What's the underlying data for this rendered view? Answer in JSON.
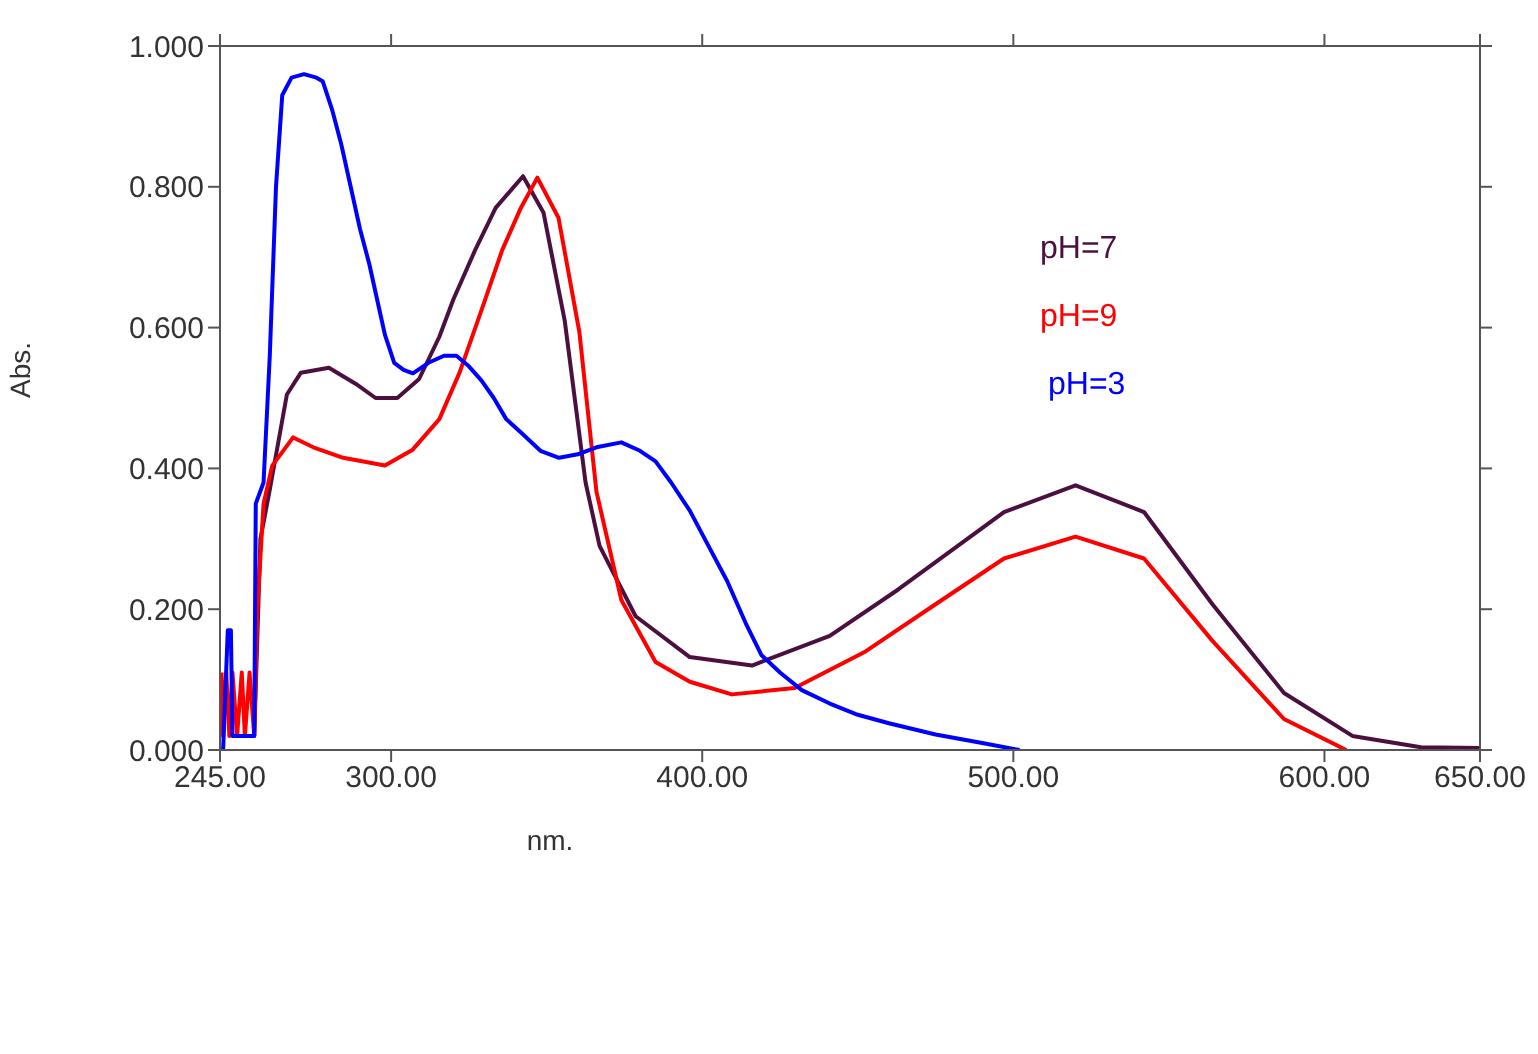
{
  "chart_data": {
    "type": "line",
    "xlabel": "nm.",
    "ylabel": "Abs.",
    "xlim": [
      245,
      650
    ],
    "ylim": [
      0,
      1
    ],
    "xticks": [
      {
        "value": 245,
        "label": "245.00"
      },
      {
        "value": 300,
        "label": "300.00"
      },
      {
        "value": 400,
        "label": "400.00"
      },
      {
        "value": 500,
        "label": "500.00"
      },
      {
        "value": 600,
        "label": "600.00"
      },
      {
        "value": 650,
        "label": "650.00"
      }
    ],
    "yticks": [
      {
        "value": 0,
        "label": "0.000"
      },
      {
        "value": 0.2,
        "label": "0.200"
      },
      {
        "value": 0.4,
        "label": "0.400"
      },
      {
        "value": 0.6,
        "label": "0.600"
      },
      {
        "value": 0.8,
        "label": "0.800"
      },
      {
        "value": 1,
        "label": "1.000"
      }
    ],
    "grid": false,
    "legend": "top right",
    "series": [
      {
        "name": "pH=7",
        "color": "#4b0f40",
        "x": [
          256,
          258,
          261,
          266.5,
          271,
          280,
          288.7,
          295,
          302,
          309,
          315.5,
          320,
          327,
          333.6,
          342.4,
          349,
          355.8,
          362.5,
          367,
          378.6,
          396,
          416,
          441,
          463,
          497,
          520,
          542,
          564,
          587,
          609,
          631,
          650
        ],
        "values": [
          0.02,
          0.3,
          0.37,
          0.505,
          0.536,
          0.543,
          0.52,
          0.5,
          0.5,
          0.527,
          0.587,
          0.64,
          0.71,
          0.77,
          0.815,
          0.763,
          0.61,
          0.38,
          0.29,
          0.19,
          0.132,
          0.12,
          0.162,
          0.228,
          0.338,
          0.376,
          0.338,
          0.207,
          0.081,
          0.02,
          0.004,
          0.003
        ]
      },
      {
        "name": "pH=9",
        "color": "#ff0000",
        "x": [
          245.5,
          246,
          247,
          248,
          249,
          250.5,
          252,
          253,
          254.5,
          256,
          257,
          259,
          261.8,
          268.5,
          275,
          284.6,
          298,
          306.8,
          315.5,
          322,
          329,
          335.7,
          341.7,
          347,
          353.8,
          360.5,
          366,
          374,
          385,
          396,
          409.5,
          429.7,
          452.5,
          475,
          497,
          520,
          542,
          564,
          587,
          607
        ],
        "values": [
          0.11,
          0.02,
          0.11,
          0.02,
          0.11,
          0.02,
          0.11,
          0.02,
          0.11,
          0.02,
          0.2,
          0.35,
          0.404,
          0.444,
          0.43,
          0.415,
          0.404,
          0.426,
          0.47,
          0.536,
          0.624,
          0.71,
          0.77,
          0.813,
          0.756,
          0.594,
          0.367,
          0.213,
          0.125,
          0.097,
          0.079,
          0.088,
          0.14,
          0.207,
          0.272,
          0.303,
          0.272,
          0.155,
          0.044,
          0
        ]
      },
      {
        "name": "pH=3",
        "color": "#0000ff",
        "x": [
          246,
          247.5,
          248.5,
          249,
          256,
          256.5,
          259,
          261,
          263,
          265,
          268,
          272,
          276,
          278,
          281,
          284,
          287,
          290,
          293,
          296,
          298,
          301,
          304,
          307,
          312,
          317,
          321,
          325,
          329,
          333,
          337,
          342,
          348,
          354,
          360,
          366,
          374,
          380,
          385,
          390,
          396,
          402,
          408,
          414,
          419,
          425,
          432,
          441,
          450,
          460,
          475,
          490,
          502
        ],
        "values": [
          0,
          0.17,
          0.17,
          0.02,
          0.02,
          0.35,
          0.38,
          0.56,
          0.8,
          0.93,
          0.955,
          0.96,
          0.955,
          0.95,
          0.91,
          0.86,
          0.8,
          0.74,
          0.69,
          0.63,
          0.59,
          0.55,
          0.54,
          0.535,
          0.55,
          0.56,
          0.56,
          0.545,
          0.525,
          0.5,
          0.47,
          0.45,
          0.425,
          0.415,
          0.42,
          0.43,
          0.437,
          0.425,
          0.41,
          0.38,
          0.34,
          0.29,
          0.24,
          0.18,
          0.135,
          0.11,
          0.085,
          0.066,
          0.05,
          0.038,
          0.022,
          0.01,
          0
        ]
      }
    ]
  }
}
